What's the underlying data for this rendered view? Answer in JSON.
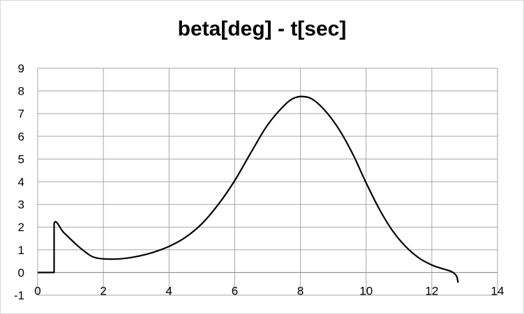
{
  "chart_data": {
    "type": "line",
    "title": "beta[deg] - t[sec]",
    "xlabel": "",
    "ylabel": "",
    "xlim": [
      0,
      14
    ],
    "ylim": [
      -1,
      9
    ],
    "xticks": [
      0,
      2,
      4,
      6,
      8,
      10,
      12,
      14
    ],
    "yticks": [
      -1,
      0,
      1,
      2,
      3,
      4,
      5,
      6,
      7,
      8,
      9
    ],
    "grid": true,
    "legend": "none",
    "line_color": "#000000",
    "series": [
      {
        "x": [
          0,
          0.5,
          0.5,
          0.8,
          1.2,
          1.5,
          1.7,
          2.0,
          2.5,
          3.0,
          3.5,
          4.0,
          4.5,
          5.0,
          5.5,
          6.0,
          6.5,
          7.0,
          7.5,
          7.8,
          8.1,
          8.4,
          8.8,
          9.2,
          9.6,
          10.0,
          10.4,
          10.8,
          11.2,
          11.6,
          12.0,
          12.3,
          12.6,
          12.75,
          12.8
        ],
        "y": [
          0,
          0,
          2.15,
          1.75,
          1.2,
          0.85,
          0.68,
          0.6,
          0.6,
          0.7,
          0.88,
          1.15,
          1.55,
          2.15,
          3.0,
          4.05,
          5.3,
          6.5,
          7.35,
          7.68,
          7.75,
          7.6,
          7.05,
          6.25,
          5.2,
          3.95,
          2.8,
          1.85,
          1.15,
          0.65,
          0.33,
          0.18,
          0.04,
          -0.15,
          -0.45
        ]
      }
    ]
  }
}
